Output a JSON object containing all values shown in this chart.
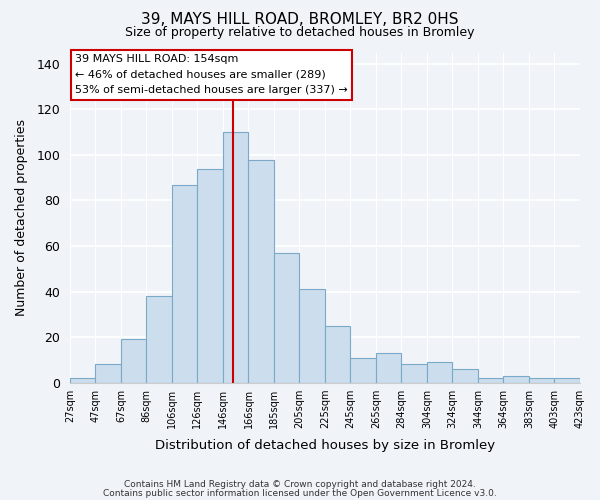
{
  "title": "39, MAYS HILL ROAD, BROMLEY, BR2 0HS",
  "subtitle": "Size of property relative to detached houses in Bromley",
  "xlabel": "Distribution of detached houses by size in Bromley",
  "ylabel": "Number of detached properties",
  "bar_color": "#ccdded",
  "bar_edge_color": "#7aaac8",
  "categories": [
    "27sqm",
    "47sqm",
    "67sqm",
    "86sqm",
    "106sqm",
    "126sqm",
    "146sqm",
    "166sqm",
    "185sqm",
    "205sqm",
    "225sqm",
    "245sqm",
    "265sqm",
    "284sqm",
    "304sqm",
    "324sqm",
    "344sqm",
    "364sqm",
    "383sqm",
    "403sqm",
    "423sqm"
  ],
  "values": [
    2,
    8,
    19,
    38,
    87,
    94,
    110,
    98,
    57,
    41,
    25,
    11,
    13,
    8,
    9,
    6,
    2,
    3,
    2,
    2
  ],
  "ylim": [
    0,
    145
  ],
  "yticks": [
    0,
    20,
    40,
    60,
    80,
    100,
    120,
    140
  ],
  "annotation_box_text": "39 MAYS HILL ROAD: 154sqm\n← 46% of detached houses are smaller (289)\n53% of semi-detached houses are larger (337) →",
  "red_line_color": "#cc0000",
  "footnote1": "Contains HM Land Registry data © Crown copyright and database right 2024.",
  "footnote2": "Contains public sector information licensed under the Open Government Licence v3.0.",
  "background_color": "#f0f4f8"
}
